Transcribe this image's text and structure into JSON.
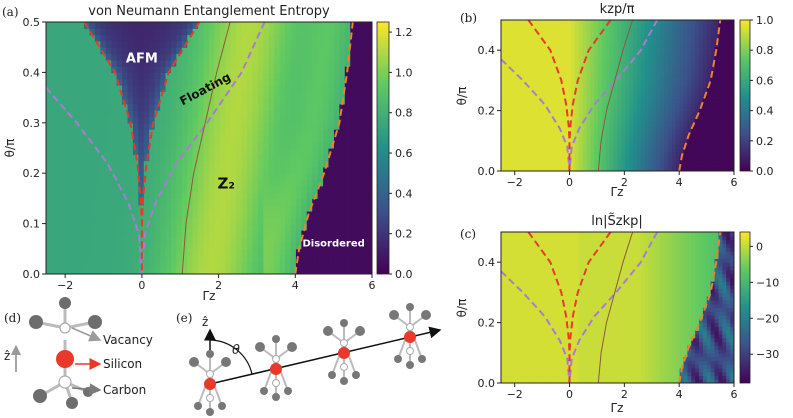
{
  "panel_labels": {
    "a": "(a)",
    "b": "(b)",
    "c": "(c)",
    "d": "(d)",
    "e": "(e)"
  },
  "colormap": [
    "#440154",
    "#3b528b",
    "#21918c",
    "#5ec962",
    "#fde725"
  ],
  "curve_colors": {
    "afm_boundary": "#e8392b",
    "z2_boundary": "#a87bd6",
    "disordered_boundary": "#f0812d",
    "floating": "#8b5a3c"
  },
  "legend_d": {
    "vacancy": "Vacancy",
    "silicon": "Silicon",
    "carbon": "Carbon",
    "axis": "ẑ"
  },
  "legend_colors": {
    "vacancy": "#9a9a9a",
    "silicon": "#e8392b",
    "carbon": "#7a7a7a"
  },
  "panel_e": {
    "axis": "ẑ",
    "angle": "θ"
  },
  "chart_data": [
    {
      "id": "a",
      "type": "heatmap",
      "title": "von Neumann Entanglement Entropy",
      "xlabel": "Γz",
      "ylabel": "θ/π",
      "xlim": [
        -2.5,
        6
      ],
      "ylim": [
        0,
        0.5
      ],
      "xticks": [
        -2,
        0,
        2,
        4,
        6
      ],
      "yticks": [
        0.0,
        0.1,
        0.2,
        0.3,
        0.4,
        0.5
      ],
      "colorbar": {
        "range": [
          0,
          1.25
        ],
        "ticks": [
          0.0,
          0.2,
          0.4,
          0.6,
          0.8,
          1.0,
          1.2
        ]
      },
      "regions": [
        {
          "label": "AFM",
          "x": 0.0,
          "y": 0.42,
          "color": "#ffffff"
        },
        {
          "label": "Floating",
          "x": 1.7,
          "y": 0.36,
          "color": "#111111"
        },
        {
          "label": "Z₂",
          "x": 2.2,
          "y": 0.17,
          "color": "#111111"
        },
        {
          "label": "Disordered",
          "x": 5.0,
          "y": 0.055,
          "color": "#ffffff"
        }
      ],
      "field": "entropy"
    },
    {
      "id": "b",
      "type": "heatmap",
      "title": "kzp/π",
      "xlabel": "Γz",
      "ylabel": "θ/π",
      "xlim": [
        -2.5,
        6
      ],
      "ylim": [
        0,
        0.5
      ],
      "xticks": [
        -2,
        0,
        2,
        4,
        6
      ],
      "yticks": [
        0.0,
        0.2,
        0.4
      ],
      "colorbar": {
        "range": [
          0,
          1.0
        ],
        "ticks": [
          0.0,
          0.2,
          0.4,
          0.6,
          0.8,
          1.0
        ]
      },
      "field": "momentum"
    },
    {
      "id": "c",
      "type": "heatmap",
      "title": "ln|S̃zkp|",
      "xlabel": "Γz",
      "ylabel": "θ/π",
      "xlim": [
        -2.5,
        6
      ],
      "ylim": [
        0,
        0.5
      ],
      "xticks": [
        -2,
        0,
        2,
        4,
        6
      ],
      "yticks": [
        0.0,
        0.2,
        0.4
      ],
      "colorbar": {
        "range": [
          -38,
          4
        ],
        "ticks": [
          0,
          -10,
          -20,
          -30
        ]
      },
      "field": "structure"
    }
  ],
  "boundaries": {
    "afm_left": [
      [
        -1.5,
        0.5
      ],
      [
        -0.7,
        0.4
      ],
      [
        -0.3,
        0.3
      ],
      [
        -0.12,
        0.22
      ],
      [
        -0.03,
        0.15
      ],
      [
        0.0,
        0.1
      ],
      [
        0.0,
        0.0
      ]
    ],
    "afm_right": [
      [
        1.5,
        0.5
      ],
      [
        0.7,
        0.4
      ],
      [
        0.3,
        0.3
      ],
      [
        0.12,
        0.22
      ],
      [
        0.03,
        0.15
      ],
      [
        0.0,
        0.1
      ]
    ],
    "z2_left": [
      [
        -2.5,
        0.37
      ],
      [
        -1.7,
        0.3
      ],
      [
        -0.9,
        0.22
      ],
      [
        -0.35,
        0.14
      ],
      [
        -0.08,
        0.08
      ],
      [
        0.0,
        0.0
      ]
    ],
    "z2_right": [
      [
        3.2,
        0.5
      ],
      [
        2.6,
        0.4
      ],
      [
        1.7,
        0.3
      ],
      [
        0.9,
        0.22
      ],
      [
        0.35,
        0.14
      ],
      [
        0.08,
        0.08
      ],
      [
        0.0,
        0.0
      ]
    ],
    "floating": [
      [
        1.05,
        0.0
      ],
      [
        1.15,
        0.1
      ],
      [
        1.35,
        0.2
      ],
      [
        1.65,
        0.3
      ],
      [
        1.95,
        0.4
      ],
      [
        2.3,
        0.5
      ]
    ],
    "disordered": [
      [
        4.0,
        0.0
      ],
      [
        4.1,
        0.05
      ],
      [
        4.35,
        0.12
      ],
      [
        4.75,
        0.2
      ],
      [
        5.15,
        0.3
      ],
      [
        5.35,
        0.4
      ],
      [
        5.5,
        0.5
      ]
    ]
  }
}
